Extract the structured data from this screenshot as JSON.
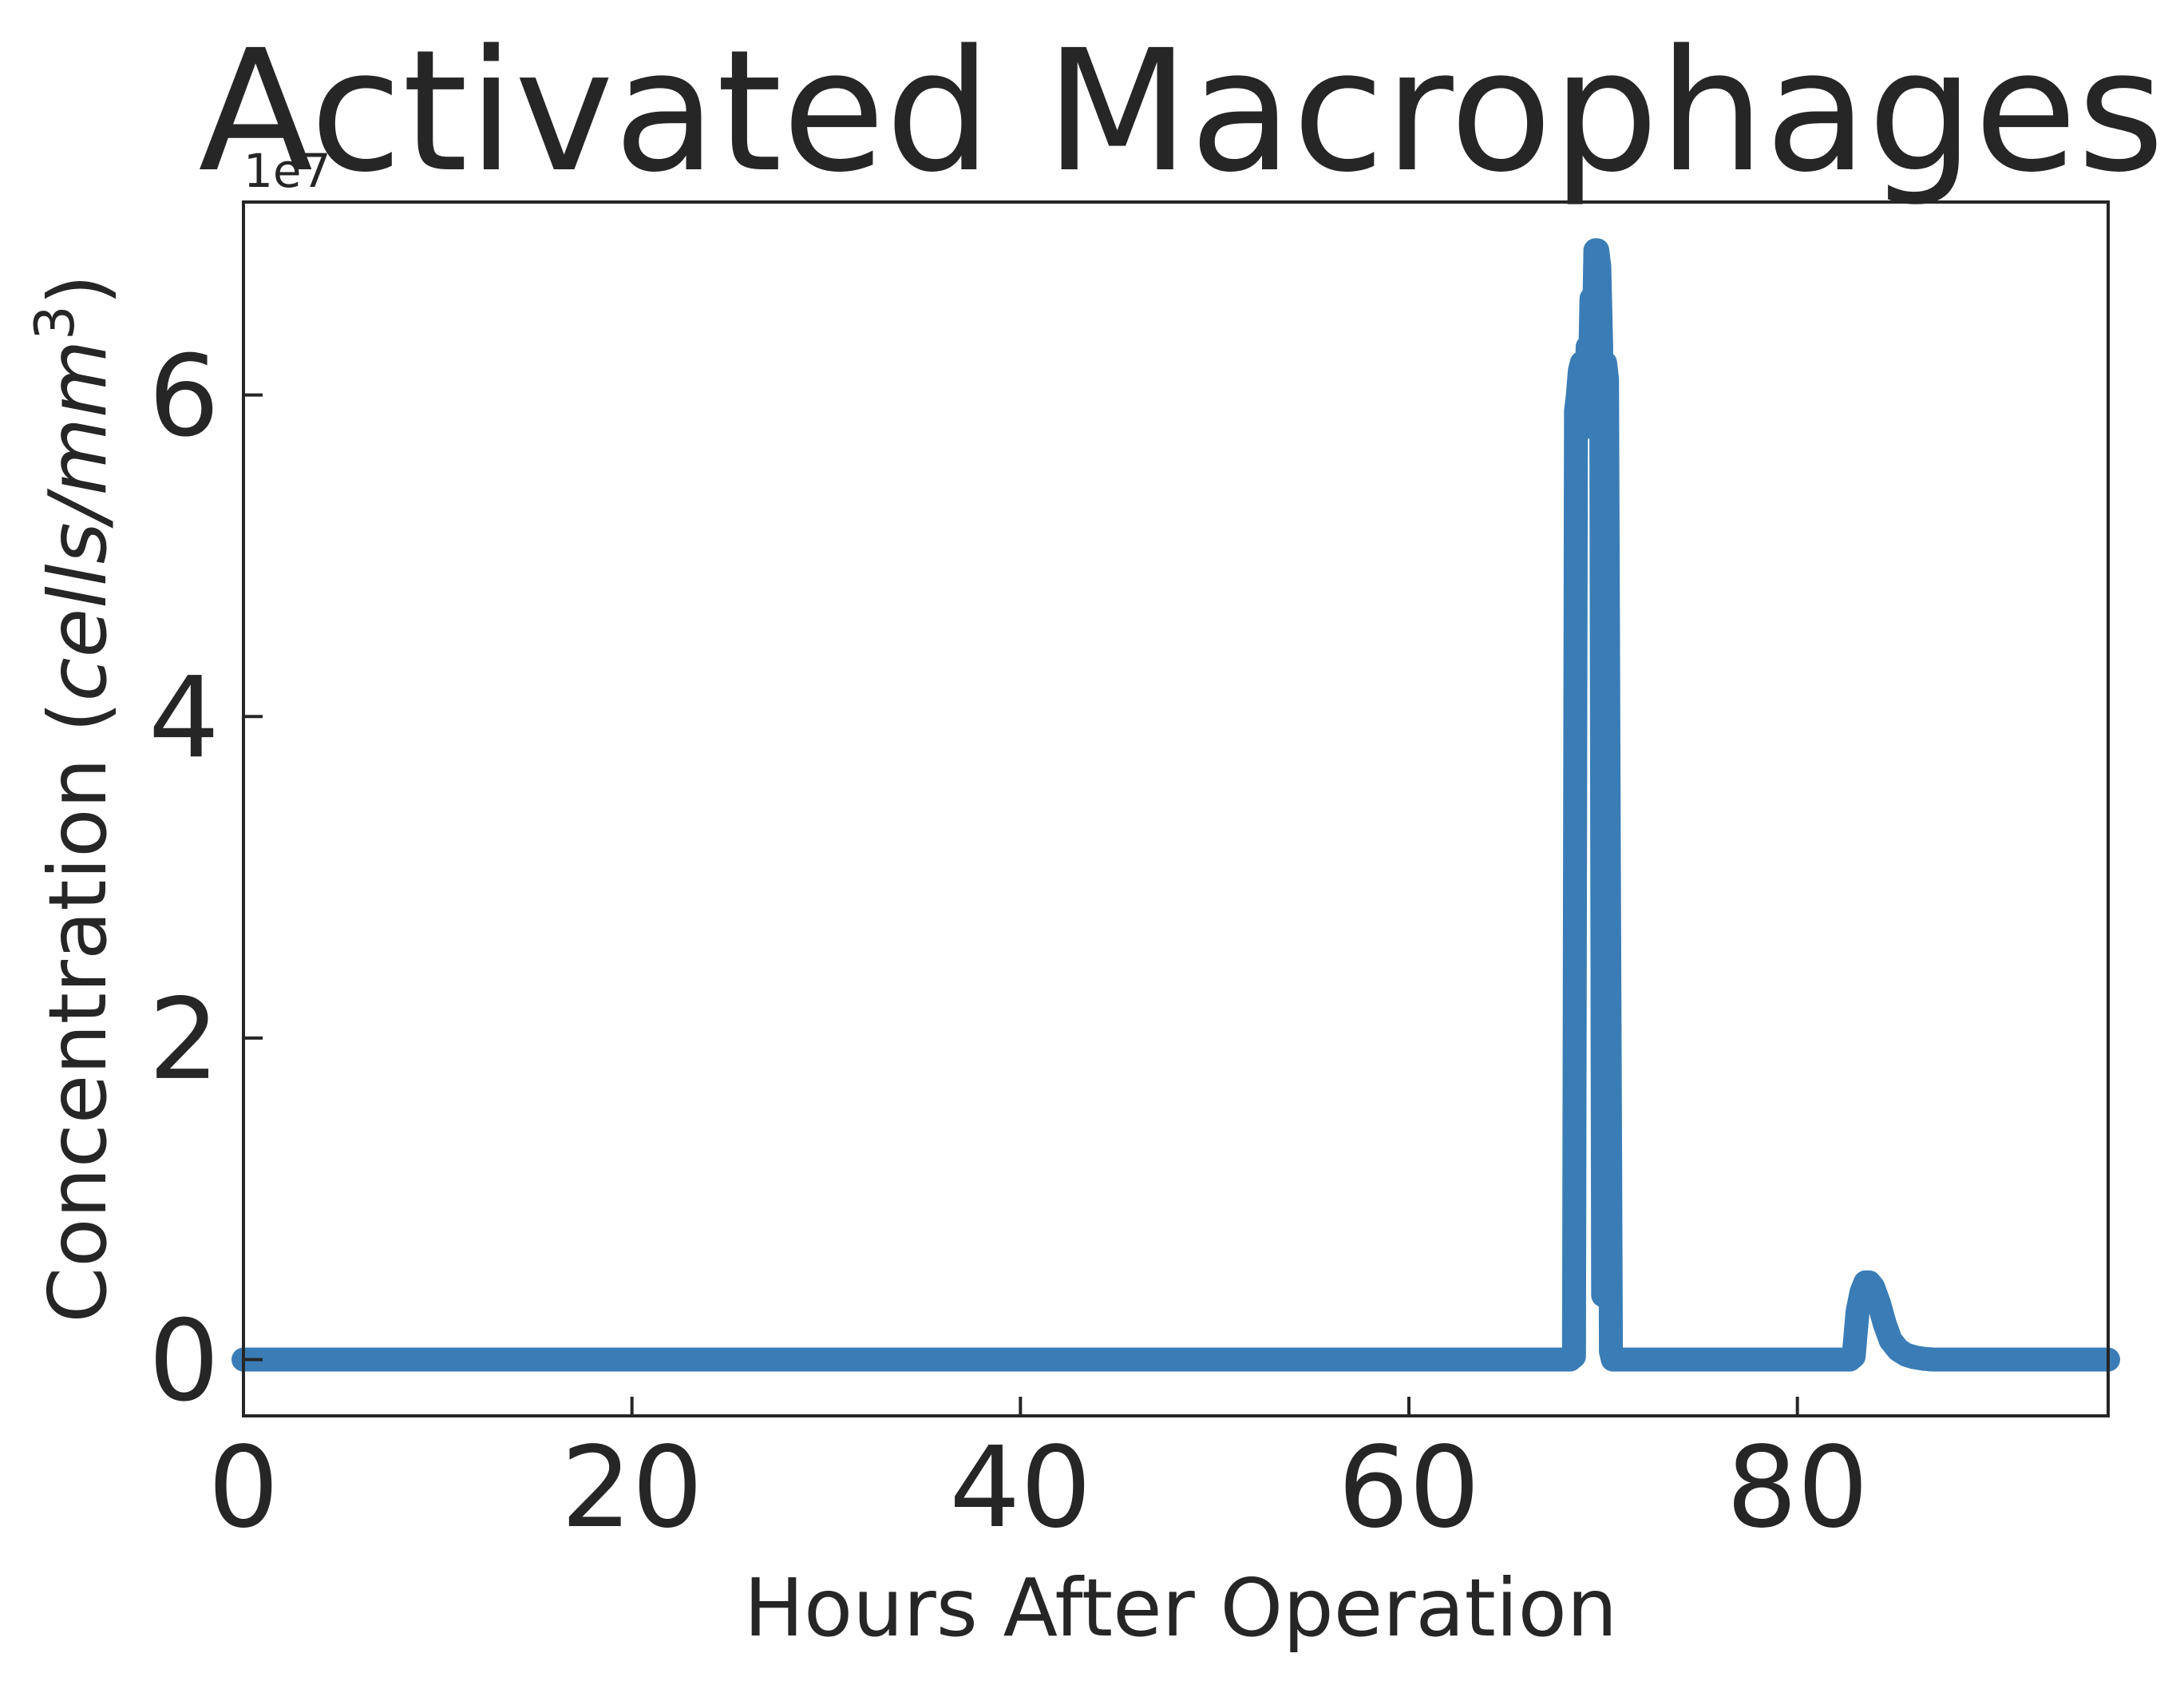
{
  "chart_data": {
    "type": "line",
    "title": "Activated Macrophages",
    "xlabel": "Hours After Operation",
    "ylabel_text": "Concentration (",
    "ylabel_unit": "cells/mm",
    "ylabel_superscript": "3",
    "ylabel_close": ")",
    "offset_text": "1e7",
    "xlim": [
      0,
      96
    ],
    "ylim": [
      -0.35,
      7.2
    ],
    "x_ticks": [
      0,
      20,
      40,
      60,
      80
    ],
    "x_tick_labels": [
      "0",
      "20",
      "40",
      "60",
      "80"
    ],
    "y_ticks": [
      0,
      2,
      4,
      6
    ],
    "y_tick_labels": [
      "0",
      "2",
      "4",
      "6"
    ],
    "grid": false,
    "legend": "none",
    "line_color": "#3a7db6",
    "series": [
      {
        "x": [
          0,
          68.3,
          68.5,
          68.6,
          68.7,
          68.8,
          68.9,
          69.0,
          69.1,
          69.2,
          69.3,
          69.4,
          69.5,
          69.6,
          69.7,
          69.8,
          69.9,
          70.0,
          70.1,
          70.2,
          70.3,
          70.4,
          70.5,
          70.55,
          70.6,
          70.7,
          70.8,
          71.0,
          82.7,
          82.9,
          83.1,
          83.3,
          83.5,
          83.7,
          83.9,
          84.2,
          84.5,
          84.8,
          85.2,
          85.6,
          86.0,
          86.5,
          87.0,
          96
        ],
        "y": [
          0,
          0,
          0.02,
          5.9,
          6.0,
          6.15,
          6.2,
          6.2,
          5.8,
          6.3,
          6.0,
          6.6,
          6.2,
          6.9,
          6.9,
          6.8,
          6.3,
          0.4,
          6.2,
          6.1,
          3.0,
          0.05,
          0,
          0,
          0,
          0,
          0,
          0,
          0,
          0.02,
          0.3,
          0.42,
          0.48,
          0.48,
          0.45,
          0.35,
          0.22,
          0.12,
          0.06,
          0.03,
          0.015,
          0.005,
          0,
          0
        ]
      }
    ]
  }
}
